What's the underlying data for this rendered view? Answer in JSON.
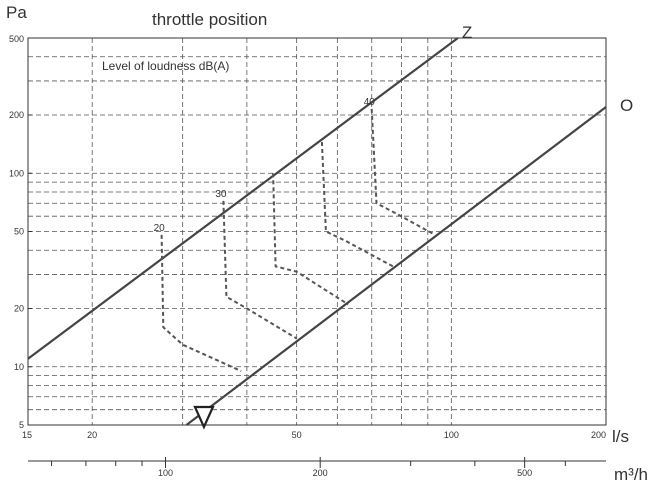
{
  "chart_data": {
    "type": "line",
    "title": "throttle position",
    "ylabel": "Pa",
    "xlabel": "l/s",
    "x2label": "m³/h",
    "annotation": "Level of loudness dB(A)",
    "x_scale": "log",
    "y_scale": "log",
    "xlim": [
      15,
      200
    ],
    "ylim": [
      5,
      500
    ],
    "x_ticks": [
      {
        "value": 15,
        "label": "15"
      },
      {
        "value": 20,
        "label": "20"
      },
      {
        "value": 50,
        "label": "50"
      },
      {
        "value": 100,
        "label": "100"
      },
      {
        "value": 200,
        "label": "200"
      }
    ],
    "y_ticks": [
      {
        "value": 5,
        "label": "5"
      },
      {
        "value": 10,
        "label": "10"
      },
      {
        "value": 20,
        "label": "20"
      },
      {
        "value": 50,
        "label": "50"
      },
      {
        "value": 100,
        "label": "100"
      },
      {
        "value": 200,
        "label": "200"
      },
      {
        "value": 500,
        "label": "500"
      }
    ],
    "x2_ticks": [
      {
        "value": 100,
        "label": "100"
      },
      {
        "value": 200,
        "label": "200"
      },
      {
        "value": 500,
        "label": "500"
      }
    ],
    "x2_minor": [
      60,
      70,
      80,
      90,
      300,
      400,
      600
    ],
    "x2_scale_ls_per_m3h": 0.2778,
    "grid": true,
    "series": [
      {
        "name": "Z",
        "color": "#444444",
        "style": "solid",
        "points": [
          [
            15,
            11
          ],
          [
            103,
            500
          ]
        ]
      },
      {
        "name": "O",
        "color": "#444444",
        "style": "solid",
        "points": [
          [
            30.5,
            5
          ],
          [
            200,
            220
          ]
        ]
      },
      {
        "name": "20",
        "color": "#555555",
        "style": "dashed",
        "points": [
          [
            27.3,
            48
          ],
          [
            27.5,
            16
          ],
          [
            30,
            13
          ],
          [
            39,
            9.5
          ]
        ]
      },
      {
        "name": "30",
        "color": "#555555",
        "style": "dashed",
        "points": [
          [
            36,
            72
          ],
          [
            36.5,
            23
          ],
          [
            40,
            20
          ],
          [
            50,
            14
          ]
        ]
      },
      {
        "name": "",
        "color": "#555555",
        "style": "dashed",
        "points": [
          [
            45,
            100
          ],
          [
            45.5,
            33
          ],
          [
            50,
            31
          ],
          [
            63,
            21
          ]
        ]
      },
      {
        "name": "",
        "color": "#555555",
        "style": "dashed",
        "points": [
          [
            56,
            145
          ],
          [
            57,
            50
          ],
          [
            62,
            45
          ],
          [
            77,
            33
          ]
        ]
      },
      {
        "name": "40",
        "color": "#555555",
        "style": "dashed",
        "points": [
          [
            70,
            215
          ],
          [
            71.5,
            70
          ],
          [
            78,
            62
          ],
          [
            93,
            48
          ]
        ]
      }
    ],
    "series_labels": [
      {
        "text": "Z",
        "x": 103,
        "y": 500
      },
      {
        "text": "O",
        "x": 200,
        "y": 220
      },
      {
        "text": "20",
        "x": 27.3,
        "y": 48
      },
      {
        "text": "30",
        "x": 36,
        "y": 72
      },
      {
        "text": "40",
        "x": 70,
        "y": 215
      }
    ],
    "marker": {
      "symbol": "triangle-down",
      "x": 33,
      "y": 5
    }
  }
}
